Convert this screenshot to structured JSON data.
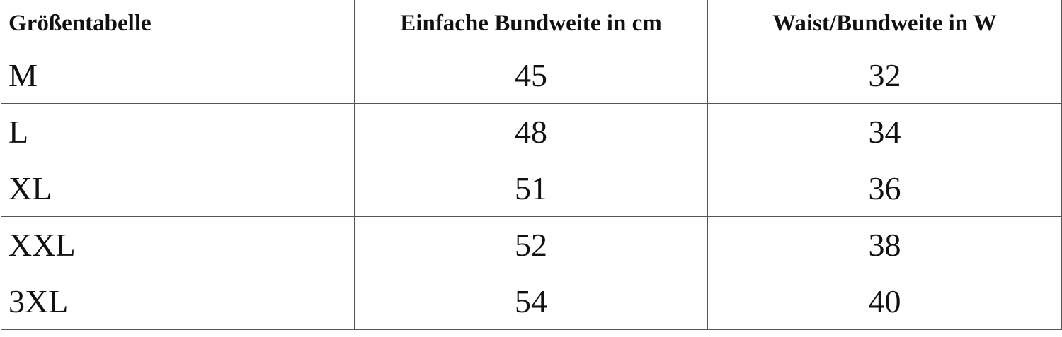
{
  "table": {
    "header": [
      "Größentabelle",
      "Einfache Bundweite in cm",
      "Waist/Bundweite in W"
    ],
    "rows": [
      [
        "M",
        45,
        32
      ],
      [
        "L",
        48,
        34
      ],
      [
        "XL",
        51,
        36
      ],
      [
        "XXL",
        52,
        38
      ],
      [
        "3XL",
        54,
        40
      ]
    ]
  }
}
